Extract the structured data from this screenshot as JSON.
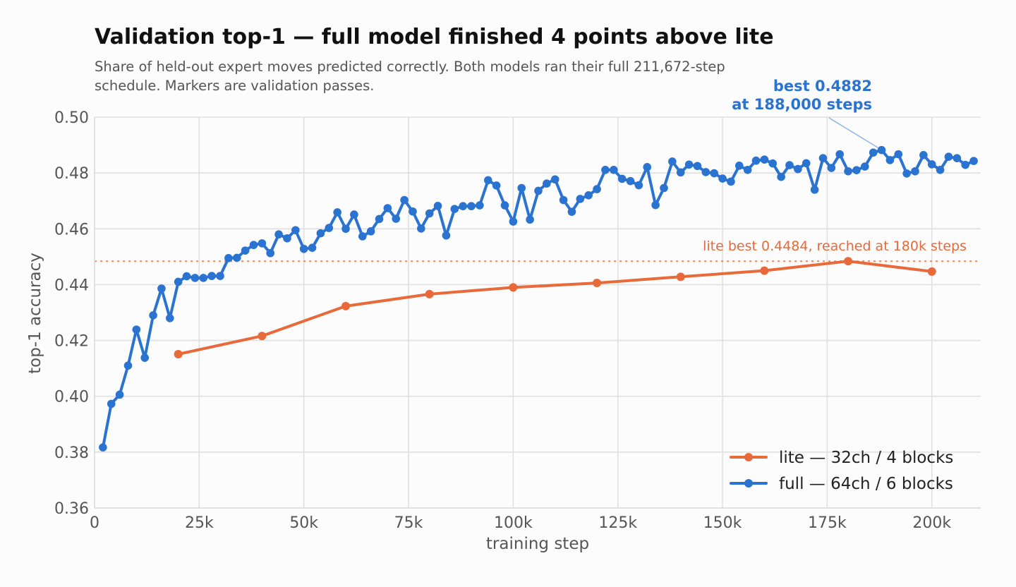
{
  "chart_data": {
    "type": "line",
    "title": "Validation top-1 — full model finished 4 points above lite",
    "subtitle": [
      "Share of held-out expert moves predicted correctly. Both models ran their full 211,672-step",
      "schedule. Markers are validation passes."
    ],
    "xlabel": "training step",
    "ylabel": "top-1 accuracy",
    "xlim": [
      0,
      211672
    ],
    "ylim": [
      0.36,
      0.5
    ],
    "x_ticks": [
      {
        "value": 0,
        "label": "0"
      },
      {
        "value": 25000,
        "label": "25k"
      },
      {
        "value": 50000,
        "label": "50k"
      },
      {
        "value": 75000,
        "label": "75k"
      },
      {
        "value": 100000,
        "label": "100k"
      },
      {
        "value": 125000,
        "label": "125k"
      },
      {
        "value": 150000,
        "label": "150k"
      },
      {
        "value": 175000,
        "label": "175k"
      },
      {
        "value": 200000,
        "label": "200k"
      }
    ],
    "y_ticks": [
      {
        "value": 0.36,
        "label": "0.36"
      },
      {
        "value": 0.38,
        "label": "0.38"
      },
      {
        "value": 0.4,
        "label": "0.40"
      },
      {
        "value": 0.42,
        "label": "0.42"
      },
      {
        "value": 0.44,
        "label": "0.44"
      },
      {
        "value": 0.46,
        "label": "0.46"
      },
      {
        "value": 0.48,
        "label": "0.48"
      },
      {
        "value": 0.5,
        "label": "0.50"
      }
    ],
    "grid": true,
    "legend_position": "bottom-right",
    "series": [
      {
        "name": "lite — 32ch / 4 blocks",
        "color": "#e8693a",
        "x": [
          20000,
          40000,
          60000,
          80000,
          100000,
          120000,
          140000,
          160000,
          180000,
          200000
        ],
        "y": [
          0.4151,
          0.4216,
          0.4323,
          0.4366,
          0.439,
          0.4406,
          0.4428,
          0.445,
          0.4484,
          0.4447
        ]
      },
      {
        "name": "full — 64ch / 6 blocks",
        "color": "#2a73d0",
        "x": [
          2000,
          4000,
          6000,
          8000,
          10000,
          12000,
          14000,
          16000,
          18000,
          20000,
          22000,
          24000,
          26000,
          28000,
          30000,
          32000,
          34000,
          36000,
          38000,
          40000,
          42000,
          44000,
          46000,
          48000,
          50000,
          52000,
          54000,
          56000,
          58000,
          60000,
          62000,
          64000,
          66000,
          68000,
          70000,
          72000,
          74000,
          76000,
          78000,
          80000,
          82000,
          84000,
          86000,
          88000,
          90000,
          92000,
          94000,
          96000,
          98000,
          100000,
          102000,
          104000,
          106000,
          108000,
          110000,
          112000,
          114000,
          116000,
          118000,
          120000,
          122000,
          124000,
          126000,
          128000,
          130000,
          132000,
          134000,
          136000,
          138000,
          140000,
          142000,
          144000,
          146000,
          148000,
          150000,
          152000,
          154000,
          156000,
          158000,
          160000,
          162000,
          164000,
          166000,
          168000,
          170000,
          172000,
          174000,
          176000,
          178000,
          180000,
          182000,
          184000,
          186000,
          188000,
          190000,
          192000,
          194000,
          196000,
          198000,
          200000,
          202000,
          204000,
          206000,
          208000,
          210000
        ],
        "y": [
          0.3817,
          0.3973,
          0.4006,
          0.411,
          0.4239,
          0.4138,
          0.429,
          0.4386,
          0.428,
          0.441,
          0.443,
          0.4424,
          0.4424,
          0.4431,
          0.4431,
          0.4495,
          0.4496,
          0.4522,
          0.4542,
          0.4548,
          0.4513,
          0.458,
          0.4566,
          0.4595,
          0.4528,
          0.4532,
          0.4584,
          0.4603,
          0.4659,
          0.46,
          0.4651,
          0.4573,
          0.4591,
          0.4635,
          0.4674,
          0.4636,
          0.4703,
          0.4662,
          0.4601,
          0.4655,
          0.4682,
          0.4576,
          0.4671,
          0.4681,
          0.4681,
          0.4684,
          0.4774,
          0.4755,
          0.4684,
          0.4626,
          0.4746,
          0.4633,
          0.4736,
          0.4762,
          0.4777,
          0.4703,
          0.4661,
          0.4707,
          0.472,
          0.4742,
          0.4811,
          0.4811,
          0.4779,
          0.4771,
          0.4756,
          0.4821,
          0.4685,
          0.4746,
          0.4841,
          0.4802,
          0.483,
          0.4825,
          0.4803,
          0.4799,
          0.478,
          0.4769,
          0.4826,
          0.4811,
          0.4844,
          0.4848,
          0.4834,
          0.4786,
          0.4828,
          0.4814,
          0.4835,
          0.474,
          0.4853,
          0.4818,
          0.4867,
          0.4806,
          0.481,
          0.4823,
          0.4873,
          0.4882,
          0.4846,
          0.4867,
          0.4798,
          0.4806,
          0.4864,
          0.4831,
          0.4811,
          0.4858,
          0.4853,
          0.4829,
          0.4843
        ]
      }
    ],
    "reference_line": {
      "y": 0.4484,
      "label": "lite best 0.4484, reached at 180k steps",
      "style": "dotted"
    },
    "annotations": [
      {
        "text": [
          "best 0.4882",
          "at 188,000 steps"
        ],
        "point": {
          "x": 188000,
          "y": 0.4882
        },
        "series": "full — 64ch / 6 blocks"
      }
    ]
  }
}
